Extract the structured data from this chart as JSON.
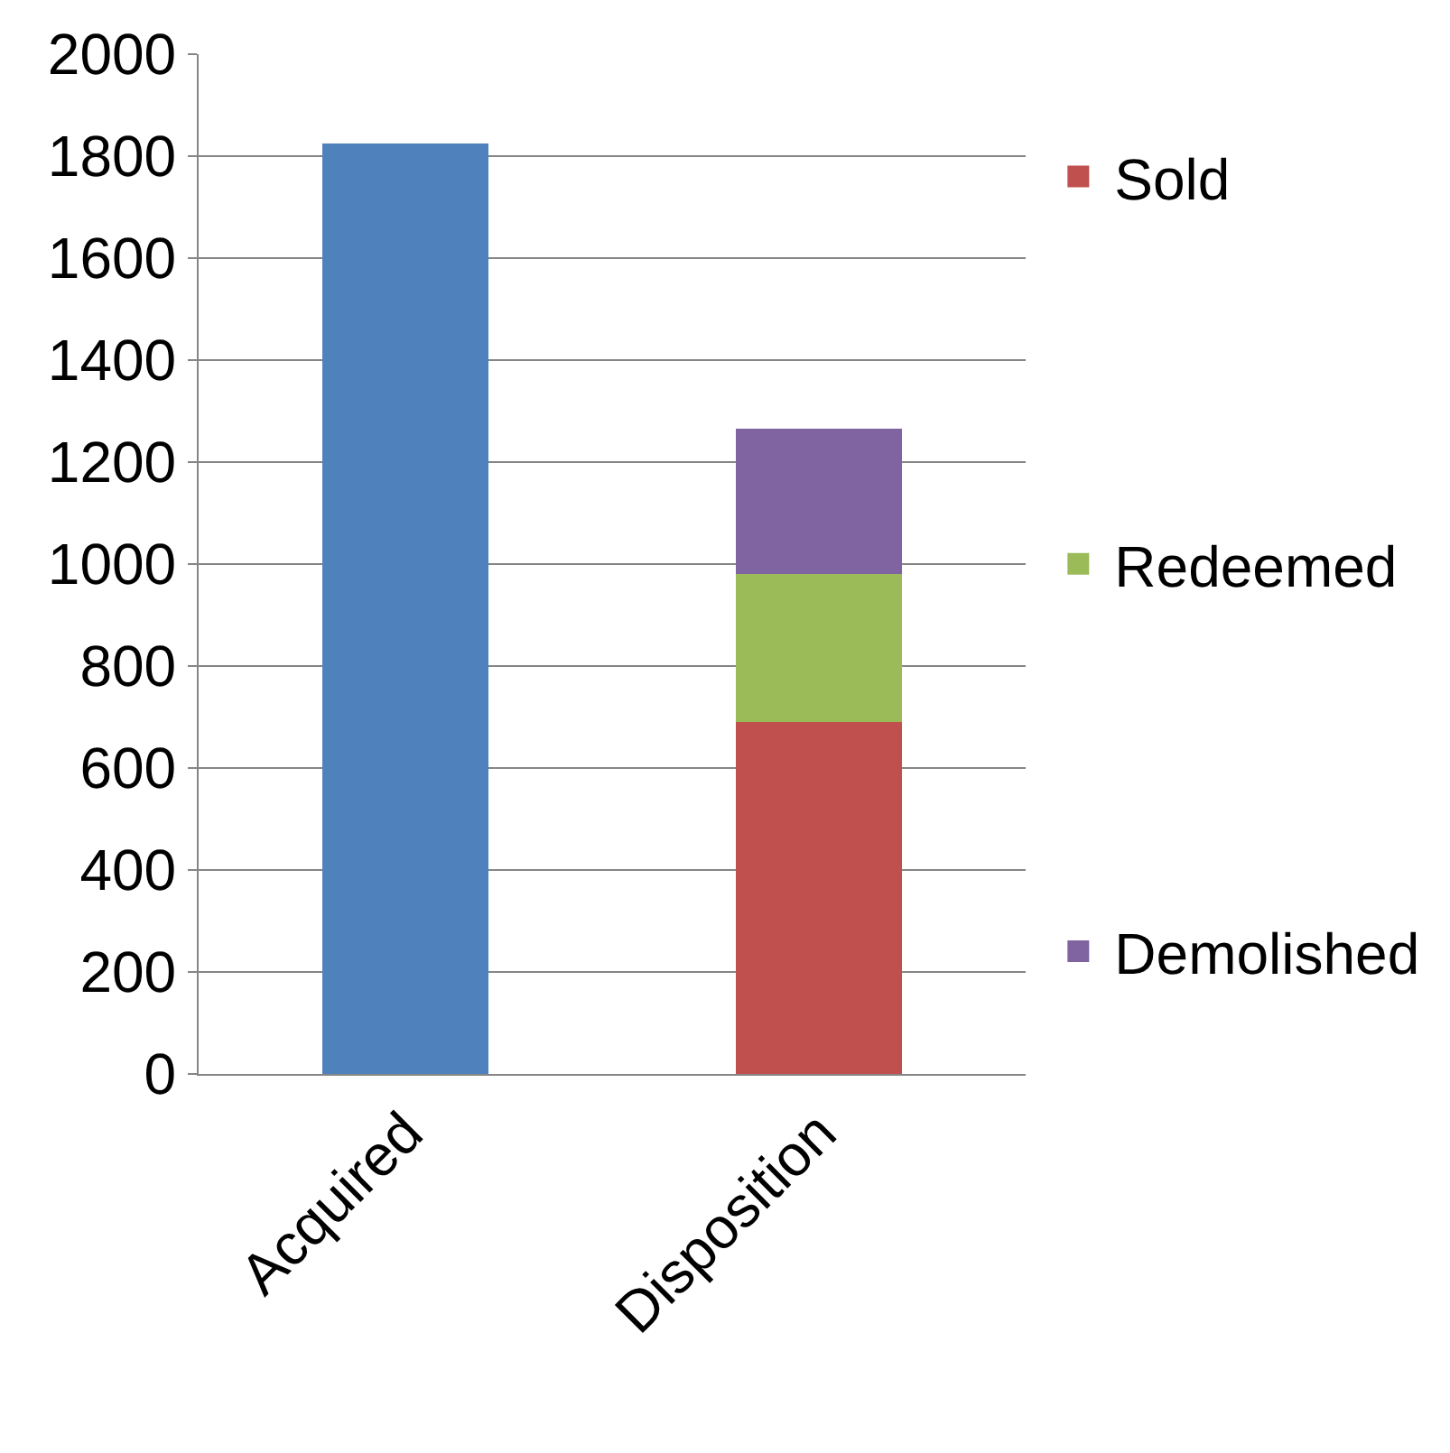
{
  "chart_data": {
    "type": "bar",
    "stacked": true,
    "categories": [
      "Acquired",
      "Disposition"
    ],
    "series": [
      {
        "color": "#4f81bd",
        "values": [
          1825,
          null
        ]
      },
      {
        "name": "Sold",
        "color": "#c0504d",
        "values": [
          null,
          690
        ]
      },
      {
        "name": "Redeemed",
        "color": "#9bbb59",
        "values": [
          null,
          290
        ]
      },
      {
        "name": "Demolished",
        "color": "#8064a2",
        "values": [
          null,
          285
        ]
      }
    ],
    "ylim": [
      0,
      2000
    ],
    "yticks": [
      0,
      200,
      400,
      600,
      800,
      1000,
      1200,
      1400,
      1600,
      1800,
      2000
    ],
    "grid": "y",
    "legend": "right"
  }
}
